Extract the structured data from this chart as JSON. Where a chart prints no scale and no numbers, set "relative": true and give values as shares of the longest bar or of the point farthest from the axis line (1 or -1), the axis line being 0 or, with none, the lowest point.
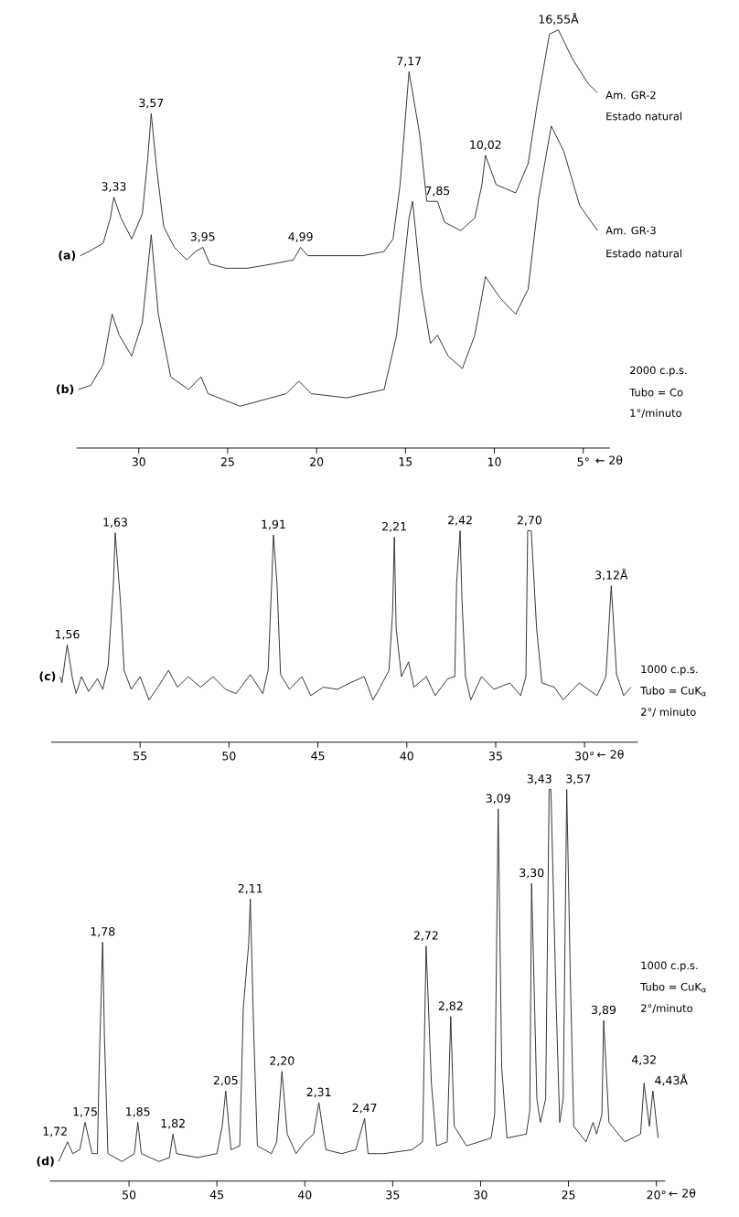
{
  "chart_data": [
    {
      "type": "line",
      "relative": true,
      "xlim": [
        33.5,
        3.5
      ],
      "xticks": [
        30,
        25,
        20,
        15,
        10,
        {
          "value": 5,
          "label": "5°"
        }
      ],
      "xlabel": "← 2θ",
      "series": [
        {
          "name": "(a)",
          "color": "#222222",
          "x": [
            33.3,
            32.8,
            32.0,
            31.6,
            31.4,
            31.0,
            30.4,
            29.8,
            29.5,
            29.3,
            29.0,
            28.6,
            28.0,
            27.3,
            26.8,
            26.4,
            26.0,
            25.1,
            23.9,
            22.5,
            21.3,
            20.9,
            20.5,
            19.1,
            17.4,
            16.2,
            15.7,
            15.3,
            14.8,
            14.2,
            13.8,
            13.2,
            12.8,
            11.9,
            11.1,
            10.7,
            10.5,
            9.9,
            8.8,
            8.1,
            7.6,
            6.9,
            6.4,
            5.6,
            4.7,
            4.2
          ],
          "values": [
            0.46,
            0.47,
            0.49,
            0.55,
            0.6,
            0.55,
            0.5,
            0.56,
            0.69,
            0.8,
            0.67,
            0.53,
            0.48,
            0.45,
            0.47,
            0.48,
            0.44,
            0.43,
            0.43,
            0.44,
            0.45,
            0.48,
            0.46,
            0.46,
            0.46,
            0.47,
            0.5,
            0.63,
            0.9,
            0.75,
            0.59,
            0.59,
            0.54,
            0.52,
            0.55,
            0.63,
            0.7,
            0.63,
            0.61,
            0.68,
            0.82,
            0.99,
            1.0,
            0.93,
            0.87,
            0.85
          ]
        },
        {
          "name": "(b)",
          "color": "#222222",
          "x": [
            33.4,
            32.7,
            32.0,
            31.5,
            31.1,
            30.4,
            29.8,
            29.3,
            28.9,
            28.2,
            27.2,
            26.5,
            26.1,
            24.3,
            21.7,
            21.0,
            20.3,
            18.3,
            16.2,
            15.5,
            14.8,
            14.6,
            14.1,
            13.6,
            13.2,
            12.6,
            11.8,
            11.1,
            10.5,
            9.7,
            8.8,
            8.1,
            7.5,
            6.8,
            6.1,
            5.2,
            4.2
          ],
          "values": [
            0.14,
            0.15,
            0.2,
            0.32,
            0.27,
            0.22,
            0.3,
            0.51,
            0.32,
            0.17,
            0.14,
            0.17,
            0.13,
            0.1,
            0.13,
            0.16,
            0.13,
            0.12,
            0.14,
            0.27,
            0.55,
            0.59,
            0.38,
            0.25,
            0.27,
            0.22,
            0.19,
            0.27,
            0.41,
            0.36,
            0.32,
            0.38,
            0.6,
            0.77,
            0.71,
            0.58,
            0.52
          ]
        }
      ],
      "annotations": [
        {
          "text": "3,33",
          "x": 31.4,
          "y": 0.6
        },
        {
          "text": "3,57",
          "x": 29.3,
          "y": 0.8
        },
        {
          "text": "3,95",
          "x": 26.4,
          "y": 0.48
        },
        {
          "text": "4,99",
          "x": 20.9,
          "y": 0.48
        },
        {
          "text": "7,17",
          "x": 14.8,
          "y": 0.9
        },
        {
          "text": "7,85",
          "x": 13.2,
          "y": 0.59
        },
        {
          "text": "10,02",
          "x": 10.5,
          "y": 0.7
        },
        {
          "text": "16,55Å",
          "x": 6.4,
          "y": 1.0
        },
        "Am. GR-2",
        "Estado natural",
        "Am. GR-3",
        "Estado natural",
        "2000 c.p.s.",
        "Tubo = Co",
        "1°/minuto"
      ]
    },
    {
      "type": "line",
      "relative": true,
      "xlim": [
        60,
        27
      ],
      "xticks": [
        55,
        50,
        45,
        40,
        35,
        {
          "value": 30,
          "label": "30°"
        }
      ],
      "xlabel": "← 2θ",
      "series": [
        {
          "name": "(c)",
          "color": "#222222",
          "x": [
            59.5,
            59.4,
            59.1,
            58.8,
            58.6,
            58.3,
            57.9,
            57.4,
            57.1,
            56.8,
            56.5,
            56.4,
            56.1,
            55.9,
            55.5,
            55.0,
            54.5,
            54.0,
            53.4,
            52.9,
            52.3,
            51.6,
            50.9,
            50.2,
            49.6,
            48.8,
            48.1,
            47.8,
            47.6,
            47.5,
            47.3,
            47.1,
            46.6,
            45.9,
            45.4,
            44.7,
            43.9,
            43.2,
            42.4,
            41.9,
            41.5,
            41.0,
            40.8,
            40.7,
            40.6,
            40.3,
            39.9,
            39.6,
            38.9,
            38.4,
            37.7,
            37.3,
            37.2,
            37.0,
            36.9,
            36.7,
            36.4,
            35.8,
            35.1,
            34.2,
            33.6,
            33.3,
            33.2,
            33.0,
            32.7,
            32.4,
            31.7,
            31.2,
            30.3,
            29.3,
            28.8,
            28.5,
            28.2,
            27.8,
            27.4
          ],
          "values": [
            0.31,
            0.28,
            0.46,
            0.3,
            0.23,
            0.31,
            0.24,
            0.3,
            0.25,
            0.36,
            0.75,
            0.99,
            0.66,
            0.34,
            0.25,
            0.31,
            0.2,
            0.26,
            0.34,
            0.26,
            0.31,
            0.26,
            0.31,
            0.25,
            0.23,
            0.32,
            0.23,
            0.34,
            0.75,
            0.98,
            0.75,
            0.32,
            0.25,
            0.31,
            0.22,
            0.26,
            0.25,
            0.28,
            0.31,
            0.2,
            0.26,
            0.34,
            0.61,
            0.97,
            0.54,
            0.31,
            0.38,
            0.26,
            0.31,
            0.22,
            0.3,
            0.31,
            0.75,
            1.0,
            0.68,
            0.31,
            0.2,
            0.31,
            0.25,
            0.28,
            0.22,
            0.31,
            1.0,
            1.0,
            0.54,
            0.28,
            0.26,
            0.2,
            0.28,
            0.22,
            0.31,
            0.74,
            0.32,
            0.22,
            0.26
          ]
        }
      ],
      "annotations": [
        {
          "text": "1,56",
          "x": 59.1,
          "y": 0.46
        },
        {
          "text": "1,63",
          "x": 56.4,
          "y": 0.99
        },
        {
          "text": "1,91",
          "x": 47.5,
          "y": 0.98
        },
        {
          "text": "2,21",
          "x": 40.7,
          "y": 0.97
        },
        {
          "text": "2,42",
          "x": 37.0,
          "y": 1.0
        },
        {
          "text": "2,70",
          "x": 33.1,
          "y": 1.0
        },
        {
          "text": "3,12Å",
          "x": 28.5,
          "y": 0.74
        },
        "1000 c.p.s.",
        "Tubo = CuK$_{α}$",
        "2°/ minuto"
      ]
    },
    {
      "type": "line",
      "relative": true,
      "xlim": [
        54.5,
        19.5
      ],
      "xticks": [
        50,
        45,
        40,
        35,
        30,
        25,
        {
          "value": 20,
          "label": "20°"
        }
      ],
      "xlabel": "← 2θ",
      "series": [
        {
          "name": "(d)",
          "color": "#222222",
          "x": [
            54.0,
            53.5,
            53.2,
            52.8,
            52.5,
            52.1,
            51.8,
            51.7,
            51.5,
            51.4,
            51.2,
            50.4,
            49.7,
            49.5,
            49.3,
            48.3,
            47.7,
            47.5,
            47.3,
            46.1,
            45.0,
            44.7,
            44.5,
            44.2,
            43.7,
            43.5,
            43.3,
            43.2,
            43.1,
            42.9,
            42.7,
            41.9,
            41.6,
            41.3,
            41.0,
            40.5,
            40.0,
            39.5,
            39.2,
            38.8,
            37.9,
            37.1,
            36.6,
            36.4,
            35.5,
            33.9,
            33.3,
            33.1,
            32.8,
            32.5,
            31.9,
            31.7,
            31.5,
            30.8,
            29.4,
            29.2,
            29.0,
            28.8,
            28.5,
            27.4,
            27.2,
            27.1,
            26.8,
            26.6,
            26.3,
            26.1,
            26.0,
            25.7,
            25.5,
            25.3,
            25.1,
            24.9,
            24.7,
            24.0,
            23.6,
            23.4,
            23.1,
            23.0,
            22.7,
            21.8,
            20.9,
            20.7,
            20.4,
            20.2,
            19.9
          ],
          "values": [
            0.05,
            0.1,
            0.07,
            0.08,
            0.15,
            0.07,
            0.07,
            0.29,
            0.61,
            0.37,
            0.07,
            0.05,
            0.07,
            0.15,
            0.07,
            0.05,
            0.06,
            0.12,
            0.07,
            0.06,
            0.07,
            0.14,
            0.23,
            0.08,
            0.09,
            0.44,
            0.55,
            0.6,
            0.72,
            0.37,
            0.09,
            0.07,
            0.1,
            0.28,
            0.12,
            0.07,
            0.1,
            0.12,
            0.2,
            0.08,
            0.07,
            0.08,
            0.16,
            0.07,
            0.07,
            0.08,
            0.1,
            0.6,
            0.25,
            0.09,
            0.1,
            0.42,
            0.14,
            0.09,
            0.11,
            0.17,
            0.95,
            0.29,
            0.11,
            0.12,
            0.18,
            0.76,
            0.21,
            0.15,
            0.21,
            1.0,
            1.0,
            0.45,
            0.15,
            0.21,
            1.0,
            0.53,
            0.14,
            0.1,
            0.15,
            0.12,
            0.17,
            0.41,
            0.15,
            0.1,
            0.12,
            0.25,
            0.14,
            0.23,
            0.11
          ]
        }
      ],
      "annotations": [
        {
          "text": "1,72",
          "x": 53.5,
          "y": 0.1
        },
        {
          "text": "1,75",
          "x": 52.5,
          "y": 0.15
        },
        {
          "text": "1,78",
          "x": 51.5,
          "y": 0.61
        },
        {
          "text": "1,85",
          "x": 49.5,
          "y": 0.15
        },
        {
          "text": "1,82",
          "x": 47.5,
          "y": 0.12
        },
        {
          "text": "2,05",
          "x": 44.5,
          "y": 0.23
        },
        {
          "text": "2,11",
          "x": 43.1,
          "y": 0.72
        },
        {
          "text": "2,20",
          "x": 41.3,
          "y": 0.28
        },
        {
          "text": "2,31",
          "x": 39.2,
          "y": 0.2
        },
        {
          "text": "2,47",
          "x": 36.6,
          "y": 0.16
        },
        {
          "text": "2,72",
          "x": 33.1,
          "y": 0.6
        },
        {
          "text": "2,82",
          "x": 31.7,
          "y": 0.42
        },
        {
          "text": "3,09",
          "x": 29.0,
          "y": 0.95
        },
        {
          "text": "3,30",
          "x": 27.1,
          "y": 0.76
        },
        {
          "text": "3,43",
          "x": 26.0,
          "y": 1.0
        },
        {
          "text": "3,57",
          "x": 25.1,
          "y": 1.0
        },
        {
          "text": "3,89",
          "x": 23.0,
          "y": 0.41
        },
        {
          "text": "4,32",
          "x": 20.7,
          "y": 0.25
        },
        {
          "text": "4,43Å",
          "x": 20.2,
          "y": 0.23
        },
        "1000 c.p.s.",
        "Tubo = CuK$_{α}$",
        "2°/minuto"
      ]
    }
  ]
}
